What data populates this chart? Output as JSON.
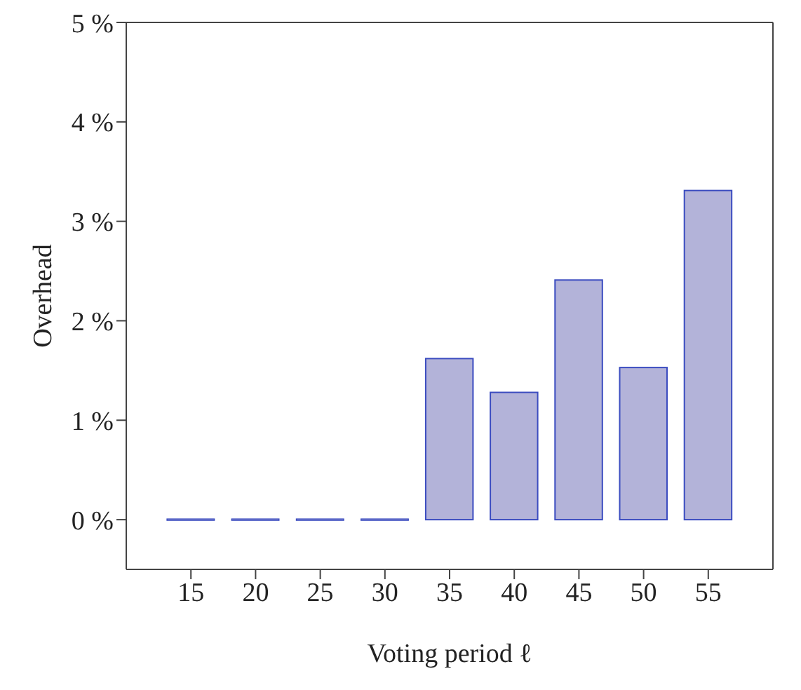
{
  "chart_data": {
    "type": "bar",
    "xlabel": "Voting period ℓ",
    "ylabel": "Overhead",
    "x": [
      15,
      20,
      25,
      30,
      35,
      40,
      45,
      50,
      55
    ],
    "values": [
      0,
      0,
      0,
      0,
      1.62,
      1.28,
      2.41,
      1.53,
      3.31
    ],
    "color": "#b3b3d9",
    "xlim": [
      10,
      60
    ],
    "xticks": [
      15,
      20,
      25,
      30,
      35,
      40,
      45,
      50,
      55
    ],
    "ylim": [
      -0.5,
      5
    ],
    "yticks": [
      {
        "value": 0,
        "label": "0 %"
      },
      {
        "value": 1,
        "label": "1 %"
      },
      {
        "value": 2,
        "label": "2 %"
      },
      {
        "value": 3,
        "label": "3 %"
      },
      {
        "value": 4,
        "label": "4 %"
      },
      {
        "value": 5,
        "label": "5 %"
      }
    ],
    "grid": false,
    "legend": false
  }
}
